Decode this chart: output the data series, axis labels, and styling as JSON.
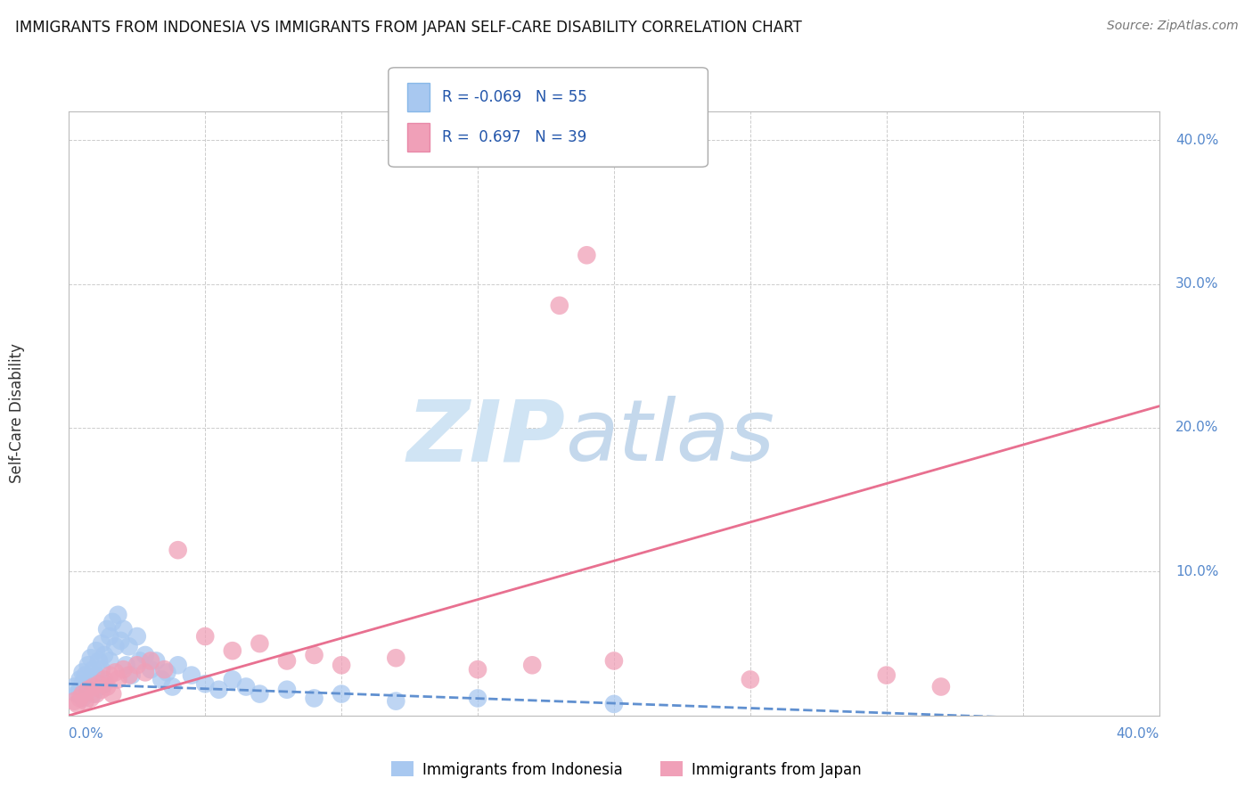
{
  "title": "IMMIGRANTS FROM INDONESIA VS IMMIGRANTS FROM JAPAN SELF-CARE DISABILITY CORRELATION CHART",
  "source": "Source: ZipAtlas.com",
  "ylabel": "Self-Care Disability",
  "y_ticks": [
    0.0,
    0.1,
    0.2,
    0.3,
    0.4
  ],
  "y_tick_labels": [
    "",
    "10.0%",
    "20.0%",
    "30.0%",
    "40.0%"
  ],
  "xlim": [
    0.0,
    0.4
  ],
  "ylim": [
    0.0,
    0.42
  ],
  "color_indonesia": "#A8C8F0",
  "color_japan": "#F0A0B8",
  "color_indonesia_line": "#6090D0",
  "color_japan_line": "#E87090",
  "background_color": "#FFFFFF",
  "indonesia_x": [
    0.002,
    0.003,
    0.004,
    0.004,
    0.005,
    0.005,
    0.005,
    0.006,
    0.006,
    0.007,
    0.007,
    0.008,
    0.008,
    0.009,
    0.009,
    0.01,
    0.01,
    0.011,
    0.011,
    0.012,
    0.012,
    0.013,
    0.013,
    0.014,
    0.015,
    0.015,
    0.016,
    0.017,
    0.018,
    0.019,
    0.02,
    0.021,
    0.022,
    0.023,
    0.025,
    0.026,
    0.028,
    0.03,
    0.032,
    0.034,
    0.036,
    0.038,
    0.04,
    0.045,
    0.05,
    0.055,
    0.06,
    0.065,
    0.07,
    0.08,
    0.09,
    0.1,
    0.12,
    0.15,
    0.2
  ],
  "indonesia_y": [
    0.02,
    0.015,
    0.025,
    0.018,
    0.03,
    0.022,
    0.012,
    0.028,
    0.018,
    0.035,
    0.02,
    0.04,
    0.025,
    0.032,
    0.015,
    0.045,
    0.028,
    0.038,
    0.02,
    0.05,
    0.032,
    0.042,
    0.022,
    0.06,
    0.055,
    0.038,
    0.065,
    0.048,
    0.07,
    0.052,
    0.06,
    0.035,
    0.048,
    0.028,
    0.055,
    0.038,
    0.042,
    0.032,
    0.038,
    0.025,
    0.03,
    0.02,
    0.035,
    0.028,
    0.022,
    0.018,
    0.025,
    0.02,
    0.015,
    0.018,
    0.012,
    0.015,
    0.01,
    0.012,
    0.008
  ],
  "japan_x": [
    0.002,
    0.003,
    0.004,
    0.005,
    0.006,
    0.007,
    0.008,
    0.009,
    0.01,
    0.011,
    0.012,
    0.013,
    0.014,
    0.015,
    0.016,
    0.017,
    0.018,
    0.02,
    0.022,
    0.025,
    0.028,
    0.03,
    0.035,
    0.04,
    0.05,
    0.06,
    0.07,
    0.08,
    0.09,
    0.1,
    0.12,
    0.15,
    0.2,
    0.25,
    0.3,
    0.32,
    0.18,
    0.19,
    0.17
  ],
  "japan_y": [
    0.01,
    0.008,
    0.012,
    0.015,
    0.01,
    0.018,
    0.012,
    0.02,
    0.015,
    0.022,
    0.018,
    0.025,
    0.02,
    0.028,
    0.015,
    0.03,
    0.025,
    0.032,
    0.028,
    0.035,
    0.03,
    0.038,
    0.032,
    0.115,
    0.055,
    0.045,
    0.05,
    0.038,
    0.042,
    0.035,
    0.04,
    0.032,
    0.038,
    0.025,
    0.028,
    0.02,
    0.285,
    0.32,
    0.035
  ],
  "ind_trend_x0": 0.0,
  "ind_trend_y0": 0.022,
  "ind_trend_x1": 0.4,
  "ind_trend_y1": -0.005,
  "jap_trend_x0": 0.0,
  "jap_trend_y0": 0.0,
  "jap_trend_x1": 0.4,
  "jap_trend_y1": 0.215
}
